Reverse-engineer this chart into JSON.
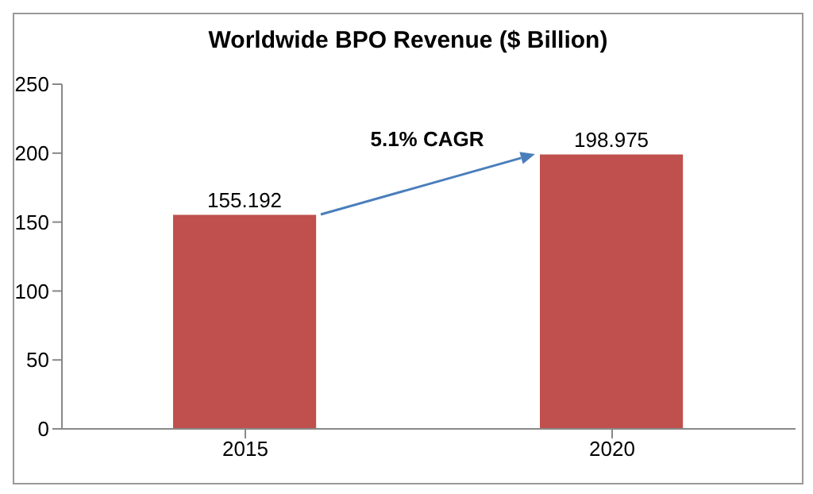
{
  "chart_data": {
    "type": "bar",
    "title": "Worldwide BPO Revenue ($ Billion)",
    "categories": [
      "2015",
      "2020"
    ],
    "values": [
      155.192,
      198.975
    ],
    "color": "#c0504d",
    "ylim": [
      0,
      250
    ],
    "yticks": [
      0,
      50,
      100,
      150,
      200,
      250
    ],
    "grid": false,
    "data_labels": true,
    "annotations": [
      "5.1% CAGR"
    ]
  }
}
